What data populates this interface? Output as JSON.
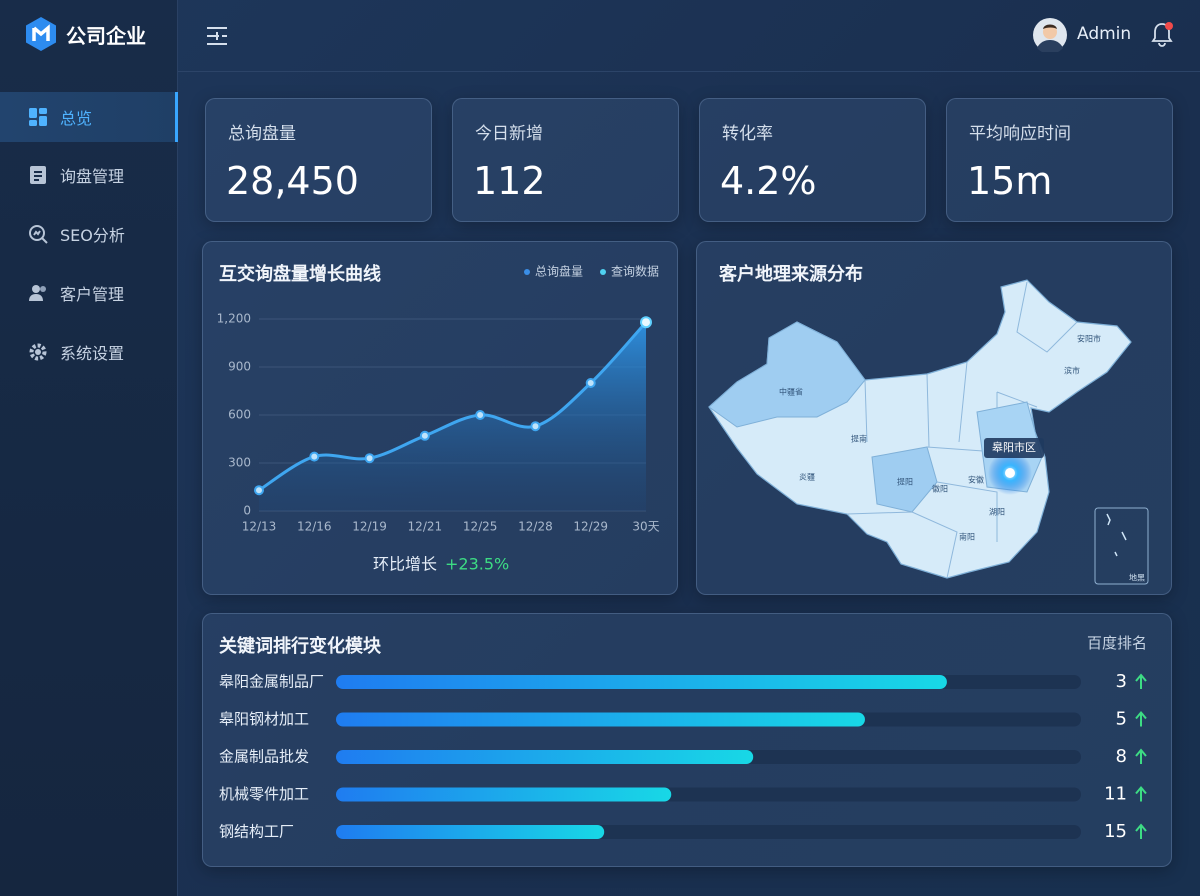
{
  "sidebar": {
    "brand": "公司企业",
    "nav": [
      "总览",
      "询盘管理",
      "SEO分析",
      "客户管理",
      "系统设置"
    ]
  },
  "header": {
    "user": "Admin"
  },
  "stats": [
    {
      "label": "总询盘量",
      "value": "28,450"
    },
    {
      "label": "今日新增",
      "value": "112"
    },
    {
      "label": "转化率",
      "value": "4.2%"
    },
    {
      "label": "平均响应时间",
      "value": "15m"
    }
  ],
  "chart_data": {
    "type": "line",
    "title": "互交询盘量增长曲线",
    "legend": [
      {
        "label": "总询盘量",
        "color": "#3a8ee6"
      },
      {
        "label": "查询数据",
        "color": "#4fd1f0"
      }
    ],
    "categories": [
      "12/13",
      "12/16",
      "12/19",
      "12/21",
      "12/25",
      "12/28",
      "12/29",
      "30天"
    ],
    "values": [
      130,
      340,
      330,
      470,
      600,
      530,
      800,
      1180
    ],
    "color": "#3fa6f0",
    "ylim": [
      0,
      1200
    ],
    "yticks": [
      0,
      300,
      600,
      900,
      {
        "value": 1200,
        "label": "1,200"
      }
    ],
    "grid": true,
    "footer": {
      "label": "环比增长",
      "value": "+23.5%"
    }
  },
  "map": {
    "title": "客户地理来源分布",
    "highlight": "皋阳市区",
    "inset": "地黑",
    "regions": [
      "中疆省",
      "提南",
      "炎疆",
      "安阳市",
      "滨市",
      "安徽",
      "提阳",
      "徽阳",
      "湖阳",
      "南阳"
    ]
  },
  "keywords": {
    "title": "关键词排行变化模块",
    "rank_header": "百度排名",
    "bar_lim": [
      0,
      100
    ],
    "rows": [
      {
        "name": "皋阳金属制品厂",
        "bar": 82,
        "rank": 3
      },
      {
        "name": "皋阳钢材加工",
        "bar": 71,
        "rank": 5
      },
      {
        "name": "金属制品批发",
        "bar": 56,
        "rank": 8
      },
      {
        "name": "机械零件加工",
        "bar": 45,
        "rank": 11
      },
      {
        "name": "钢结构工厂",
        "bar": 36,
        "rank": 15
      }
    ]
  }
}
